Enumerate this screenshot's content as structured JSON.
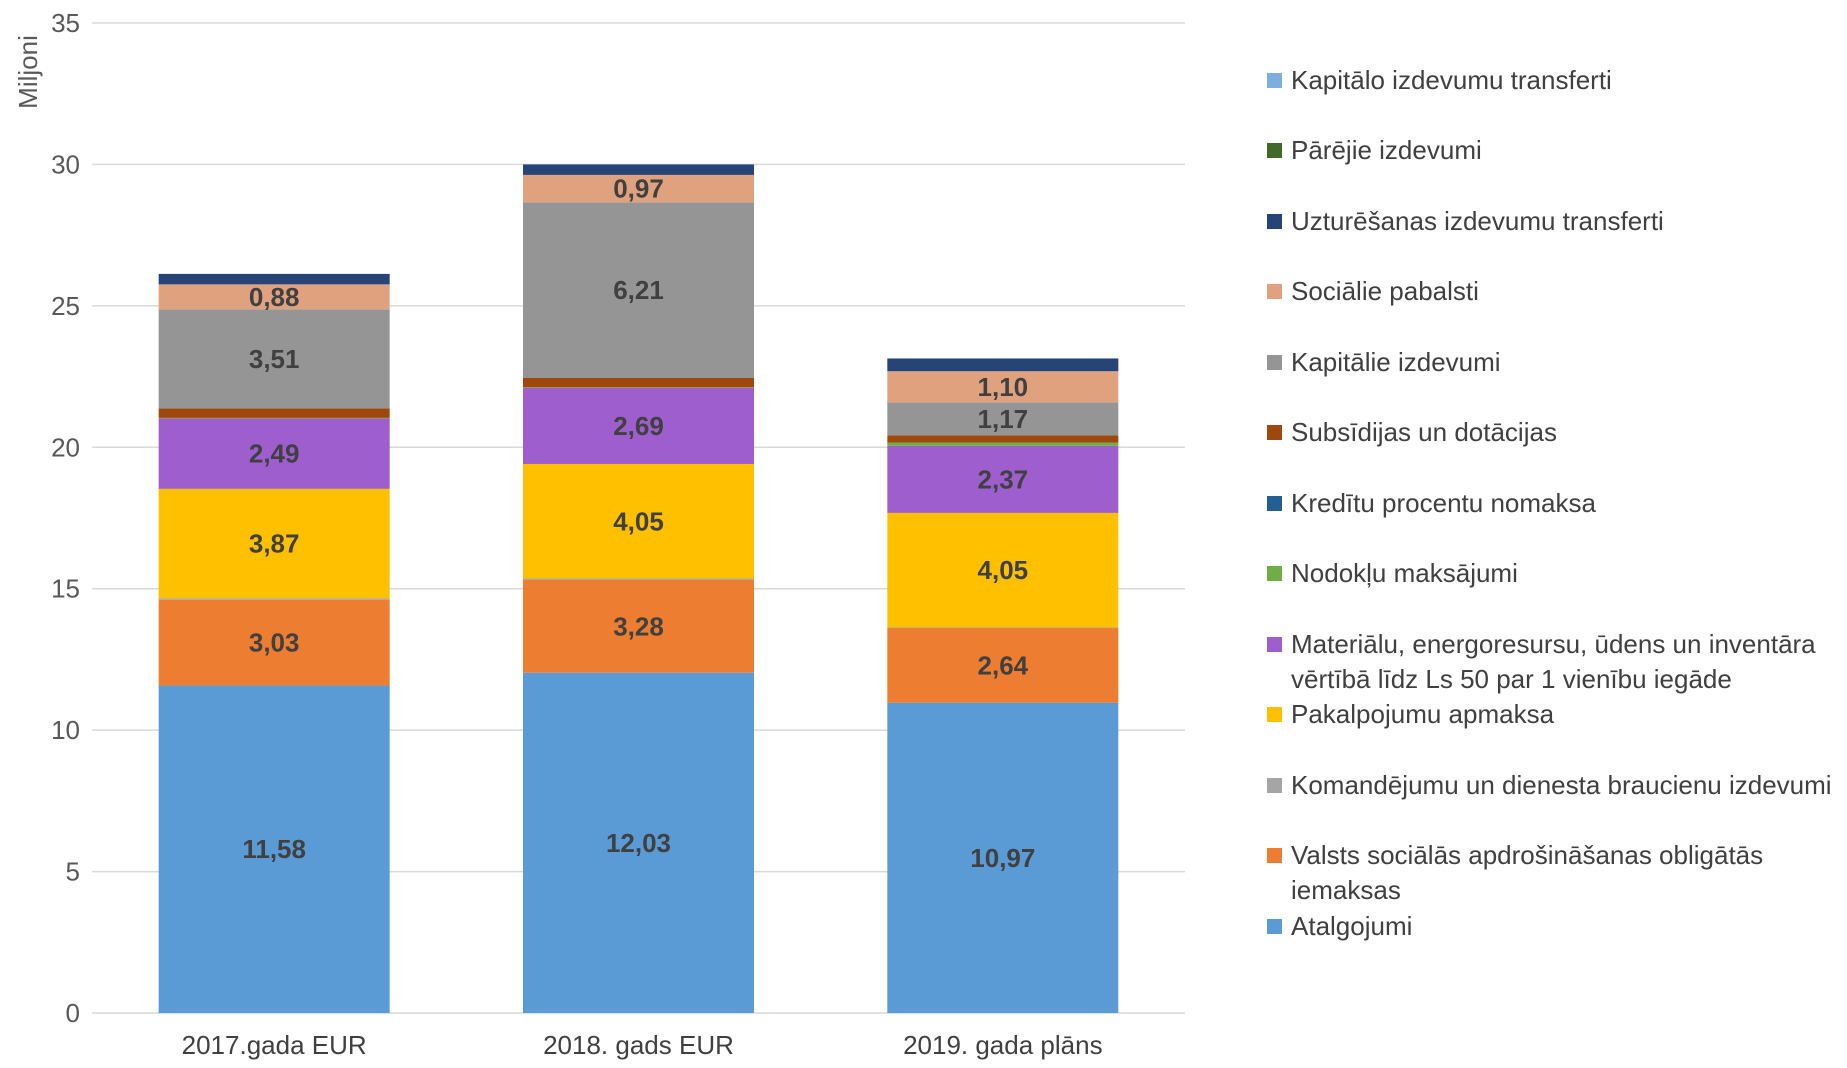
{
  "chart_data": {
    "type": "bar",
    "stacked": true,
    "ylabel": "Miljoni",
    "ylim": [
      0,
      35
    ],
    "yticks": [
      0,
      5,
      10,
      15,
      20,
      25,
      30,
      35
    ],
    "grid": true,
    "legend_position": "right",
    "categories": [
      "2017.gada EUR",
      "2018. gads EUR",
      "2019. gada plāns"
    ],
    "series": [
      {
        "name": "Atalgojumi",
        "color": "#5B9BD5",
        "values": [
          11.58,
          12.03,
          10.97
        ],
        "labels": [
          "11,58",
          "12,03",
          "10,97"
        ]
      },
      {
        "name": "Valsts sociālās apdrošināšanas obligātās iemaksas",
        "color": "#ED7D31",
        "values": [
          3.03,
          3.28,
          2.64
        ],
        "labels": [
          "3,03",
          "3,28",
          "2,64"
        ]
      },
      {
        "name": "Komandējumu un dienesta braucienu izdevumi",
        "color": "#A5A5A5",
        "values": [
          0.05,
          0.05,
          0.02
        ],
        "labels": [
          "",
          "",
          ""
        ]
      },
      {
        "name": "Pakalpojumu apmaksa",
        "color": "#FFC000",
        "values": [
          3.87,
          4.05,
          4.05
        ],
        "labels": [
          "3,87",
          "4,05",
          "4,05"
        ]
      },
      {
        "name": "Materiālu, energoresursu, ūdens un inventāra vērtībā līdz Ls 50 par 1 vienību iegāde",
        "color": "#9E5ECE",
        "values": [
          2.49,
          2.69,
          2.37
        ],
        "labels": [
          "2,49",
          "2,69",
          "2,37"
        ]
      },
      {
        "name": "Nodokļu maksājumi",
        "color": "#70AD47",
        "values": [
          0.02,
          0.02,
          0.12
        ],
        "labels": [
          "",
          "",
          ""
        ]
      },
      {
        "name": "Kredītu procentu nomaksa",
        "color": "#255E91",
        "values": [
          0.0,
          0.0,
          0.0
        ],
        "labels": [
          "",
          "",
          ""
        ]
      },
      {
        "name": "Subsīdijas un dotācijas",
        "color": "#9E480E",
        "values": [
          0.33,
          0.33,
          0.25
        ],
        "labels": [
          "",
          "",
          ""
        ]
      },
      {
        "name": "Kapitālie izdevumi",
        "color": "#959595",
        "values": [
          3.51,
          6.21,
          1.17
        ],
        "labels": [
          "3,51",
          "6,21",
          "1,17"
        ]
      },
      {
        "name": "Sociālie pabalsti",
        "color": "#E0A17E",
        "values": [
          0.88,
          0.97,
          1.1
        ],
        "labels": [
          "0,88",
          "0,97",
          "1,10"
        ]
      },
      {
        "name": "Uzturēšanas izdevumu transferti",
        "color": "#264478",
        "values": [
          0.37,
          0.37,
          0.45
        ],
        "labels": [
          "",
          "",
          ""
        ]
      },
      {
        "name": "Pārējie izdevumi",
        "color": "#43682B",
        "values": [
          0.0,
          0.0,
          0.0
        ],
        "labels": [
          "",
          "",
          ""
        ]
      },
      {
        "name": "Kapitālo izdevumu transferti",
        "color": "#7CAFDD",
        "values": [
          0.0,
          0.0,
          0.0
        ],
        "labels": [
          "",
          "",
          ""
        ]
      }
    ]
  }
}
